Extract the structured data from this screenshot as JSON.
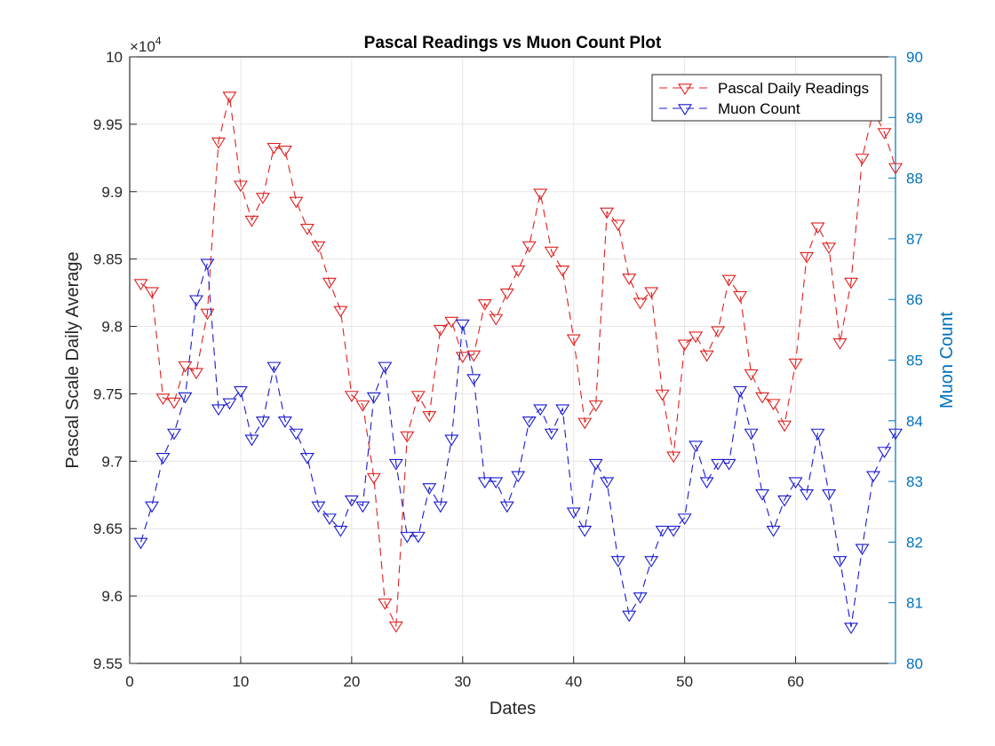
{
  "chart_data": {
    "type": "line",
    "title": "Pascal Readings vs Muon Count Plot",
    "xlabel": "Dates",
    "ylabel_left": "Pascal Scale Daily Average",
    "ylabel_right": "Muon Count",
    "left_exponent_label": "×10",
    "left_exponent_power": "4",
    "xlim": [
      0,
      69
    ],
    "ylim_left": [
      9.55,
      10
    ],
    "ylim_right": [
      80,
      90
    ],
    "x_ticks": [
      "0",
      "10",
      "20",
      "30",
      "40",
      "50",
      "60"
    ],
    "y_left_ticks": [
      "9.55",
      "9.6",
      "9.65",
      "9.7",
      "9.75",
      "9.8",
      "9.85",
      "9.9",
      "9.95",
      "10"
    ],
    "y_right_ticks": [
      "80",
      "81",
      "82",
      "83",
      "84",
      "85",
      "86",
      "87",
      "88",
      "89",
      "90"
    ],
    "grid": true,
    "legend_position": "top-right",
    "colors": {
      "left_axis": "#000000",
      "right_axis": "#0072BD",
      "grid": "#e6e6e6"
    },
    "series": [
      {
        "name": "Pascal Daily Readings",
        "axis": "left",
        "color": "#e02020",
        "line_style": "dashed",
        "marker": "triangle-down",
        "x": [
          1,
          2,
          3,
          4,
          5,
          6,
          7,
          8,
          9,
          10,
          11,
          12,
          13,
          14,
          15,
          16,
          17,
          18,
          19,
          20,
          21,
          22,
          23,
          24,
          25,
          26,
          27,
          28,
          29,
          30,
          31,
          32,
          33,
          34,
          35,
          36,
          37,
          38,
          39,
          40,
          41,
          42,
          43,
          44,
          45,
          46,
          47,
          48,
          49,
          50,
          51,
          52,
          53,
          54,
          55,
          56,
          57,
          58,
          59,
          60,
          61,
          62,
          63,
          64,
          65,
          66,
          67,
          68,
          69
        ],
        "values": [
          9.832,
          9.826,
          9.747,
          9.744,
          9.771,
          9.766,
          9.81,
          9.937,
          9.971,
          9.905,
          9.879,
          9.896,
          9.933,
          9.931,
          9.893,
          9.873,
          9.86,
          9.833,
          9.812,
          9.749,
          9.742,
          9.688,
          9.595,
          9.578,
          9.719,
          9.749,
          9.734,
          9.798,
          9.804,
          9.778,
          9.779,
          9.817,
          9.806,
          9.825,
          9.842,
          9.86,
          9.899,
          9.856,
          9.842,
          9.791,
          9.729,
          9.742,
          9.885,
          9.876,
          9.836,
          9.818,
          9.826,
          9.75,
          9.704,
          9.787,
          9.793,
          9.779,
          9.797,
          9.835,
          9.823,
          9.765,
          9.748,
          9.743,
          9.727,
          9.773,
          9.852,
          9.874,
          9.859,
          9.788,
          9.833,
          9.925,
          9.96,
          9.944,
          9.918
        ]
      },
      {
        "name": "Muon Count",
        "axis": "right",
        "color": "#1a1ad0",
        "line_style": "dashed",
        "marker": "triangle-down",
        "x": [
          1,
          2,
          3,
          4,
          5,
          6,
          7,
          8,
          9,
          10,
          11,
          12,
          13,
          14,
          15,
          16,
          17,
          18,
          19,
          20,
          21,
          22,
          23,
          24,
          25,
          26,
          27,
          28,
          29,
          30,
          31,
          32,
          33,
          34,
          35,
          36,
          37,
          38,
          39,
          40,
          41,
          42,
          43,
          44,
          45,
          46,
          47,
          48,
          49,
          50,
          51,
          52,
          53,
          54,
          55,
          56,
          57,
          58,
          59,
          60,
          61,
          62,
          63,
          64,
          65,
          66,
          67,
          68,
          69
        ],
        "values": [
          82.0,
          82.6,
          83.4,
          83.8,
          84.4,
          86.0,
          86.6,
          84.2,
          84.3,
          84.5,
          83.7,
          84.0,
          84.9,
          84.0,
          83.8,
          83.4,
          82.6,
          82.4,
          82.2,
          82.7,
          82.6,
          84.4,
          84.9,
          83.3,
          82.1,
          82.1,
          82.9,
          82.6,
          83.7,
          85.6,
          84.7,
          83.0,
          83.0,
          82.6,
          83.1,
          84.0,
          84.2,
          83.8,
          84.2,
          82.5,
          82.2,
          83.3,
          83.0,
          81.7,
          80.8,
          81.1,
          81.7,
          82.2,
          82.2,
          82.4,
          83.6,
          83.0,
          83.3,
          83.3,
          84.5,
          83.8,
          82.8,
          82.2,
          82.7,
          83.0,
          82.8,
          83.8,
          82.8,
          81.7,
          80.6,
          81.9,
          83.1,
          83.5,
          83.8
        ]
      }
    ]
  }
}
